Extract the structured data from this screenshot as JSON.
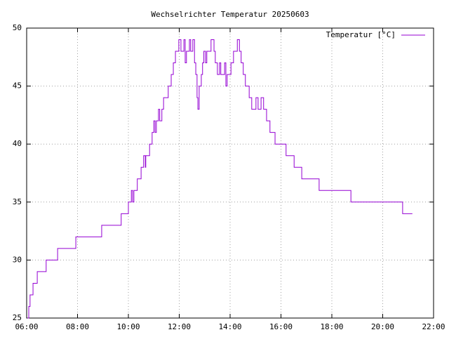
{
  "chart_data": {
    "type": "line",
    "style": "steps",
    "title": "Wechselrichter Temperatur 20250603",
    "x": [
      "06:02",
      "06:05",
      "06:08",
      "06:15",
      "06:25",
      "06:46",
      "07:13",
      "07:56",
      "08:57",
      "09:43",
      "10:00",
      "10:07",
      "10:10",
      "10:13",
      "10:21",
      "10:30",
      "10:36",
      "10:40",
      "10:41",
      "10:50",
      "10:56",
      "11:00",
      "11:03",
      "11:06",
      "11:11",
      "11:14",
      "11:19",
      "11:23",
      "11:34",
      "11:41",
      "11:46",
      "11:51",
      "11:59",
      "12:04",
      "12:11",
      "12:14",
      "12:17",
      "12:24",
      "12:27",
      "12:32",
      "12:36",
      "12:39",
      "12:42",
      "12:44",
      "12:47",
      "12:52",
      "12:55",
      "12:58",
      "13:02",
      "13:05",
      "13:15",
      "13:22",
      "13:25",
      "13:30",
      "13:35",
      "13:38",
      "13:47",
      "13:50",
      "13:53",
      "14:02",
      "14:08",
      "14:17",
      "14:22",
      "14:26",
      "14:31",
      "14:36",
      "14:45",
      "14:51",
      "15:01",
      "15:06",
      "15:13",
      "15:19",
      "15:26",
      "15:34",
      "15:46",
      "16:12",
      "16:31",
      "16:49",
      "17:30",
      "18:45",
      "20:47",
      "21:10"
    ],
    "series": [
      {
        "name": "Temperatur [°C]",
        "color": "#9400d3",
        "values": [
          25,
          26,
          27,
          28,
          29,
          30,
          31,
          32,
          33,
          34,
          35,
          36,
          35,
          36,
          37,
          38,
          39,
          38,
          39,
          40,
          41,
          42,
          41,
          42,
          43,
          42,
          43,
          44,
          45,
          46,
          47,
          48,
          49,
          48,
          49,
          47,
          48,
          49,
          48,
          49,
          47,
          46,
          44,
          43,
          45,
          46,
          47,
          48,
          47,
          48,
          49,
          48,
          47,
          46,
          47,
          46,
          47,
          45,
          46,
          47,
          48,
          49,
          48,
          47,
          46,
          45,
          44,
          43,
          44,
          43,
          44,
          43,
          42,
          41,
          40,
          39,
          38,
          37,
          36,
          35,
          34,
          34
        ]
      }
    ],
    "xlim": [
      "06:00",
      "22:00"
    ],
    "xticks": [
      "06:00",
      "08:00",
      "10:00",
      "12:00",
      "14:00",
      "16:00",
      "18:00",
      "20:00",
      "22:00"
    ],
    "ylim": [
      25,
      50
    ],
    "yticks": [
      25,
      30,
      35,
      40,
      45,
      50
    ],
    "grid": true,
    "legend": "top-right"
  }
}
